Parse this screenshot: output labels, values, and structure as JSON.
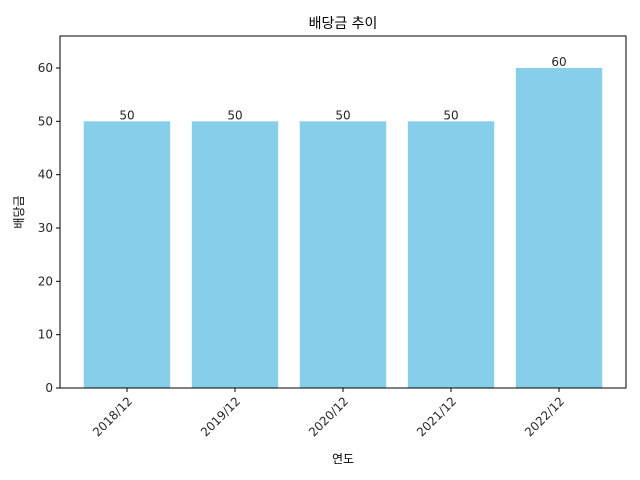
{
  "chart_data": {
    "type": "bar",
    "title": "배당금 추이",
    "xlabel": "연도",
    "ylabel": "배당금",
    "categories": [
      "2018/12",
      "2019/12",
      "2020/12",
      "2021/12",
      "2022/12"
    ],
    "values": [
      50,
      50,
      50,
      50,
      60
    ],
    "ylim": [
      0,
      66
    ],
    "yticks": [
      0,
      10,
      20,
      30,
      40,
      50,
      60
    ],
    "grid": false,
    "bar_color": "#87CEEB",
    "x_tick_rotation": 45
  }
}
